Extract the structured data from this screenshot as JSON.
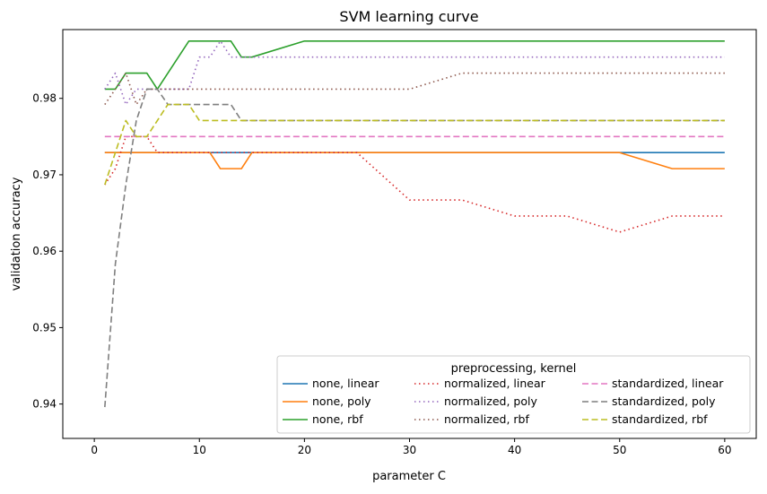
{
  "chart_data": {
    "type": "line",
    "title": "SVM learning curve",
    "xlabel": "parameter C",
    "ylabel": "validation accuracy",
    "xlim": [
      -3,
      63
    ],
    "ylim": [
      0.9355,
      0.989
    ],
    "xticks": [
      0,
      10,
      20,
      30,
      40,
      50,
      60
    ],
    "xtick_labels": [
      "0",
      "10",
      "20",
      "30",
      "40",
      "50",
      "60"
    ],
    "yticks": [
      0.94,
      0.95,
      0.96,
      0.97,
      0.98
    ],
    "ytick_labels": [
      "0.94",
      "0.95",
      "0.96",
      "0.97",
      "0.98"
    ],
    "grid": false,
    "legend_title": "preprocessing, kernel",
    "legend_position": "lower-right",
    "legend_columns": 3,
    "series": [
      {
        "name": "none, linear",
        "color": "#1f77b4",
        "dash": "solid",
        "x": [
          1,
          60
        ],
        "y": [
          0.9729,
          0.9729
        ]
      },
      {
        "name": "none, poly",
        "color": "#ff7f0e",
        "dash": "solid",
        "x": [
          1,
          11,
          12,
          14,
          15,
          50,
          55,
          60
        ],
        "y": [
          0.9729,
          0.9729,
          0.9708,
          0.9708,
          0.9729,
          0.9729,
          0.9708,
          0.9708
        ]
      },
      {
        "name": "none, rbf",
        "color": "#2ca02c",
        "dash": "solid",
        "x": [
          1,
          2,
          3,
          5,
          6,
          9,
          13,
          14,
          15,
          20,
          60
        ],
        "y": [
          0.9812,
          0.9812,
          0.9833,
          0.9833,
          0.9812,
          0.9875,
          0.9875,
          0.9854,
          0.9854,
          0.9875,
          0.9875
        ]
      },
      {
        "name": "normalized, linear",
        "color": "#d62728",
        "dash": "dot",
        "x": [
          1,
          2,
          3,
          4,
          5,
          6,
          7,
          25,
          30,
          35,
          40,
          45,
          50,
          55,
          60
        ],
        "y": [
          0.9687,
          0.9708,
          0.975,
          0.975,
          0.975,
          0.9729,
          0.9729,
          0.9729,
          0.9667,
          0.9667,
          0.9646,
          0.9646,
          0.9625,
          0.9646,
          0.9646
        ]
      },
      {
        "name": "normalized, poly",
        "color": "#9467bd",
        "dash": "dot",
        "x": [
          1,
          2,
          3,
          4,
          5,
          9,
          10,
          11,
          12,
          13,
          60
        ],
        "y": [
          0.9812,
          0.9833,
          0.9792,
          0.9812,
          0.9812,
          0.9812,
          0.9854,
          0.9854,
          0.9875,
          0.9854,
          0.9854
        ]
      },
      {
        "name": "normalized, rbf",
        "color": "#8c564b",
        "dash": "dot",
        "x": [
          1,
          2,
          3,
          4,
          5,
          6,
          30,
          35,
          60
        ],
        "y": [
          0.9792,
          0.9812,
          0.9833,
          0.9792,
          0.9812,
          0.9812,
          0.9812,
          0.9833,
          0.9833
        ]
      },
      {
        "name": "standardized, linear",
        "color": "#e377c2",
        "dash": "dash",
        "x": [
          1,
          60
        ],
        "y": [
          0.975,
          0.975
        ]
      },
      {
        "name": "standardized, poly",
        "color": "#7f7f7f",
        "dash": "dash",
        "x": [
          1,
          2,
          3,
          4,
          5,
          6,
          7,
          13,
          14,
          60
        ],
        "y": [
          0.9396,
          0.9583,
          0.9687,
          0.9771,
          0.9812,
          0.9812,
          0.9792,
          0.9792,
          0.9771,
          0.9771
        ]
      },
      {
        "name": "standardized, rbf",
        "color": "#bcbd22",
        "dash": "dash",
        "x": [
          1,
          3,
          4,
          5,
          7,
          9,
          10,
          60
        ],
        "y": [
          0.9687,
          0.9771,
          0.975,
          0.975,
          0.9792,
          0.9792,
          0.9771,
          0.9771
        ]
      }
    ]
  }
}
